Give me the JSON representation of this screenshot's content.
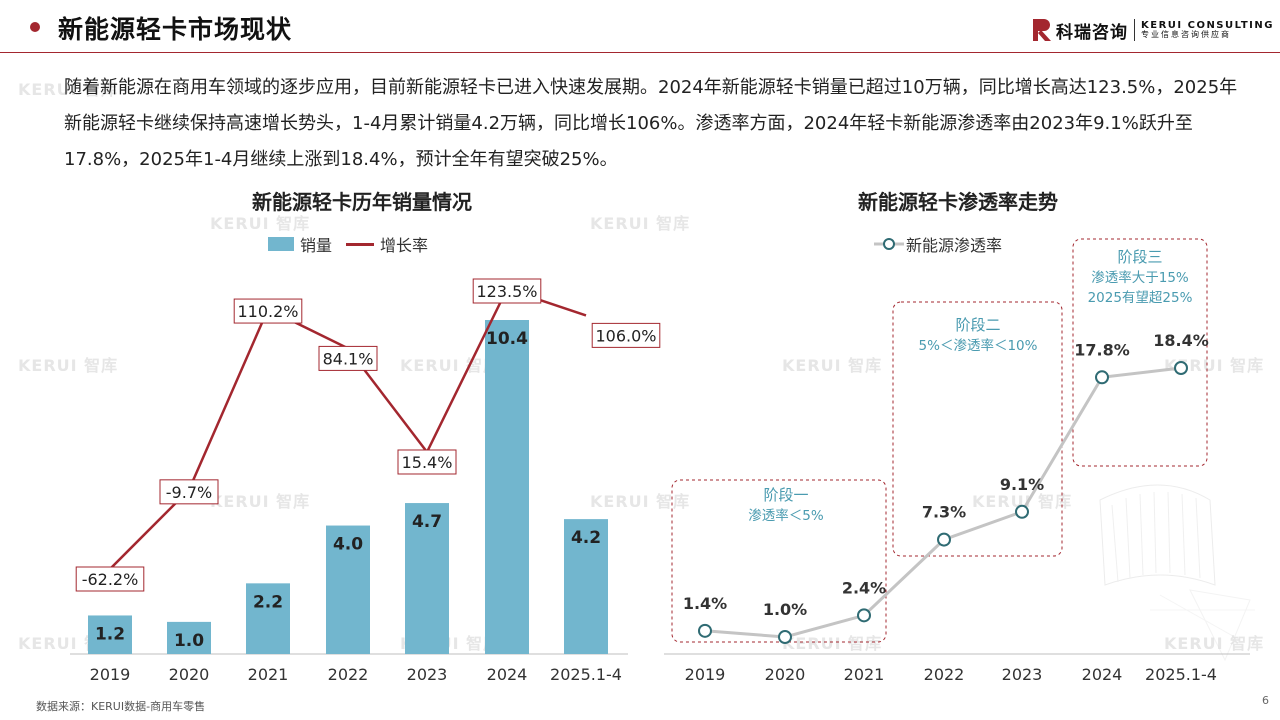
{
  "header": {
    "title": "新能源轻卡市场现状",
    "brand_cn": "科瑞咨询",
    "brand_en": "KERUI CONSULTING",
    "brand_slogan": "专业信息咨询供应商"
  },
  "intro_text": "随着新能源在商用车领域的逐步应用，目前新能源轻卡已进入快速发展期。2024年新能源轻卡销量已超过10万辆，同比增长高达123.5%，2025年新能源轻卡继续保持高速增长势头，1-4月累计销量4.2万辆，同比增长106%。渗透率方面，2024年轻卡新能源渗透率由2023年9.1%跃升至17.8%，2025年1-4月继续上涨到18.4%，预计全年有望突破25%。",
  "watermark_text": "KERUI 智库",
  "colors": {
    "accent": "#a3272f",
    "bar": "#72b6ce",
    "line_gray": "#c4c4c4",
    "marker": "#2f6b73",
    "stage_text": "#4a9bb0"
  },
  "chart_data": [
    {
      "type": "bar",
      "title": "新能源轻卡历年销量情况",
      "categories": [
        "2019",
        "2020",
        "2021",
        "2022",
        "2023",
        "2024",
        "2025.1-4"
      ],
      "series": [
        {
          "name": "销量",
          "type": "bar",
          "values": [
            1.2,
            1.0,
            2.2,
            4.0,
            4.7,
            10.4,
            4.2
          ],
          "labels": [
            "1.2",
            "1.0",
            "2.2",
            "4.0",
            "4.7",
            "10.4",
            "4.2"
          ]
        },
        {
          "name": "增长率",
          "type": "line",
          "values": [
            -62.2,
            -9.7,
            110.2,
            84.1,
            15.4,
            123.5,
            106.0
          ],
          "labels": [
            "-62.2%",
            "-9.7%",
            "110.2%",
            "84.1%",
            "15.4%",
            "123.5%",
            "106.0%"
          ]
        }
      ],
      "legend_position": "top-center",
      "grid": false
    },
    {
      "type": "line",
      "title": "新能源轻卡渗透率走势",
      "categories": [
        "2019",
        "2020",
        "2021",
        "2022",
        "2023",
        "2024",
        "2025.1-4"
      ],
      "series": [
        {
          "name": "新能源渗透率",
          "values": [
            1.4,
            1.0,
            2.4,
            7.3,
            9.1,
            17.8,
            18.4
          ],
          "labels": [
            "1.4%",
            "1.0%",
            "2.4%",
            "7.3%",
            "9.1%",
            "17.8%",
            "18.4%"
          ]
        }
      ],
      "annotations": [
        {
          "lines": [
            "阶段一",
            "渗透率＜5%"
          ]
        },
        {
          "lines": [
            "阶段二",
            "5%＜渗透率＜10%"
          ]
        },
        {
          "lines": [
            "阶段三",
            "渗透率大于15%",
            "2025有望超25%"
          ]
        }
      ],
      "legend_position": "top-center",
      "grid": false
    }
  ],
  "footer": {
    "source": "数据来源：KERUI数据-商用车零售",
    "page_number": "6"
  }
}
